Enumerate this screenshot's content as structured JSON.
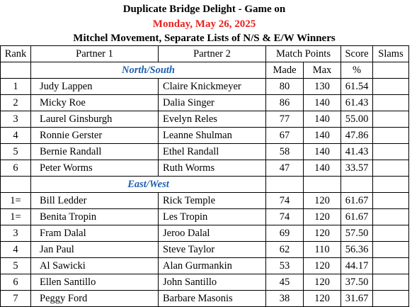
{
  "title": {
    "line1": "Duplicate Bridge Delight - Game on",
    "line2": "Monday, May 26, 2025",
    "line3": "Mitchel Movement, Separate Lists of N/S & E/W Winners"
  },
  "header": {
    "rank": "Rank",
    "partner1": "Partner 1",
    "partner2": "Partner 2",
    "match_points": "Match Points",
    "score": "Score",
    "slams": "Slams",
    "made": "Made",
    "max": "Max",
    "pct": "%"
  },
  "sections": [
    {
      "name": "North/South",
      "rows": [
        {
          "rank": "1",
          "p1": "Judy Lappen",
          "p2": "Claire Knickmeyer",
          "made": "80",
          "max": "130",
          "score": "61.54",
          "slams": ""
        },
        {
          "rank": "2",
          "p1": "Micky Roe",
          "p2": "Dalia Singer",
          "made": "86",
          "max": "140",
          "score": "61.43",
          "slams": ""
        },
        {
          "rank": "3",
          "p1": "Laurel Ginsburgh",
          "p2": "Evelyn Reles",
          "made": "77",
          "max": "140",
          "score": "55.00",
          "slams": ""
        },
        {
          "rank": "4",
          "p1": "Ronnie Gerster",
          "p2": "Leanne Shulman",
          "made": "67",
          "max": "140",
          "score": "47.86",
          "slams": ""
        },
        {
          "rank": "5",
          "p1": "Bernie Randall",
          "p2": "Ethel Randall",
          "made": "58",
          "max": "140",
          "score": "41.43",
          "slams": ""
        },
        {
          "rank": "6",
          "p1": "Peter Worms",
          "p2": "Ruth Worms",
          "made": "47",
          "max": "140",
          "score": "33.57",
          "slams": ""
        }
      ]
    },
    {
      "name": "East/West",
      "rows": [
        {
          "rank": "1=",
          "p1": "Bill Ledder",
          "p2": "Rick Temple",
          "made": "74",
          "max": "120",
          "score": "61.67",
          "slams": ""
        },
        {
          "rank": "1=",
          "p1": "Benita Tropin",
          "p2": "Les Tropin",
          "made": "74",
          "max": "120",
          "score": "61.67",
          "slams": ""
        },
        {
          "rank": "3",
          "p1": "Fram Dalal",
          "p2": "Jeroo Dalal",
          "made": "69",
          "max": "120",
          "score": "57.50",
          "slams": ""
        },
        {
          "rank": "4",
          "p1": "Jan Paul",
          "p2": "Steve Taylor",
          "made": "62",
          "max": "110",
          "score": "56.36",
          "slams": ""
        },
        {
          "rank": "5",
          "p1": "Al Sawicki",
          "p2": "Alan Gurmankin",
          "made": "53",
          "max": "120",
          "score": "44.17",
          "slams": ""
        },
        {
          "rank": "6",
          "p1": "Ellen Santillo",
          "p2": "John Santillo",
          "made": "45",
          "max": "120",
          "score": "37.50",
          "slams": ""
        },
        {
          "rank": "7",
          "p1": "Peggy Ford",
          "p2": "Barbare Masonis",
          "made": "38",
          "max": "120",
          "score": "31.67",
          "slams": ""
        }
      ]
    }
  ]
}
